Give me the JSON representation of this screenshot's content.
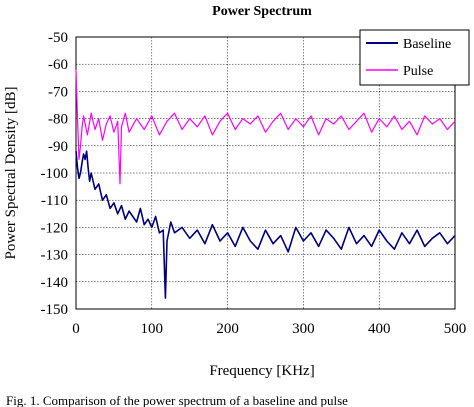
{
  "chart_data": {
    "type": "line",
    "title": "Power Spectrum",
    "xlabel": "Frequency [KHz]",
    "ylabel": "Power Spectral Density [dB]",
    "xlim": [
      0,
      500
    ],
    "ylim": [
      -150,
      -50
    ],
    "xticks": [
      0,
      100,
      200,
      300,
      400,
      500
    ],
    "yticks": [
      -50,
      -60,
      -70,
      -80,
      -90,
      -100,
      -110,
      -120,
      -130,
      -140,
      -150
    ],
    "grid": true,
    "legend_position": "top-right",
    "series": [
      {
        "name": "Baseline",
        "color": "#000080",
        "x": [
          0,
          2,
          4,
          6,
          8,
          10,
          12,
          14,
          16,
          18,
          20,
          25,
          30,
          35,
          40,
          45,
          50,
          55,
          60,
          65,
          70,
          75,
          80,
          85,
          90,
          95,
          100,
          105,
          110,
          115,
          118,
          120,
          125,
          130,
          140,
          150,
          160,
          170,
          180,
          190,
          200,
          210,
          220,
          230,
          240,
          250,
          260,
          270,
          280,
          290,
          300,
          310,
          320,
          330,
          340,
          350,
          360,
          370,
          380,
          390,
          400,
          410,
          420,
          430,
          440,
          450,
          460,
          470,
          480,
          490,
          500
        ],
        "y": [
          -92,
          -98,
          -102,
          -100,
          -96,
          -93,
          -95,
          -92,
          -98,
          -103,
          -100,
          -106,
          -104,
          -110,
          -108,
          -113,
          -111,
          -115,
          -112,
          -117,
          -114,
          -116,
          -118,
          -113,
          -119,
          -117,
          -120,
          -116,
          -122,
          -121,
          -146,
          -125,
          -118,
          -122,
          -120,
          -124,
          -121,
          -126,
          -119,
          -125,
          -122,
          -127,
          -120,
          -125,
          -128,
          -121,
          -126,
          -123,
          -129,
          -120,
          -125,
          -122,
          -127,
          -121,
          -124,
          -128,
          -120,
          -126,
          -123,
          -127,
          -121,
          -125,
          -128,
          -122,
          -126,
          -121,
          -127,
          -124,
          -122,
          -126,
          -123
        ]
      },
      {
        "name": "Pulse",
        "color": "#ff00ff",
        "x": [
          0,
          2,
          4,
          6,
          8,
          10,
          15,
          20,
          25,
          30,
          35,
          40,
          45,
          50,
          55,
          58,
          60,
          65,
          70,
          80,
          90,
          100,
          110,
          120,
          130,
          140,
          150,
          160,
          170,
          180,
          190,
          200,
          210,
          220,
          230,
          240,
          250,
          260,
          270,
          280,
          290,
          300,
          310,
          320,
          330,
          340,
          350,
          360,
          370,
          380,
          390,
          400,
          410,
          420,
          430,
          440,
          450,
          460,
          470,
          480,
          490,
          500
        ],
        "y": [
          -62,
          -80,
          -95,
          -90,
          -83,
          -79,
          -86,
          -78,
          -84,
          -80,
          -88,
          -82,
          -79,
          -85,
          -81,
          -104,
          -83,
          -78,
          -85,
          -80,
          -84,
          -79,
          -86,
          -81,
          -78,
          -84,
          -80,
          -83,
          -79,
          -86,
          -81,
          -78,
          -84,
          -80,
          -82,
          -79,
          -85,
          -81,
          -78,
          -84,
          -80,
          -83,
          -79,
          -86,
          -80,
          -82,
          -79,
          -84,
          -81,
          -78,
          -85,
          -80,
          -83,
          -79,
          -84,
          -81,
          -86,
          -79,
          -82,
          -80,
          -84,
          -81
        ]
      }
    ]
  },
  "caption": "Fig. 1. Comparison of the power spectrum of a baseline and pulse"
}
